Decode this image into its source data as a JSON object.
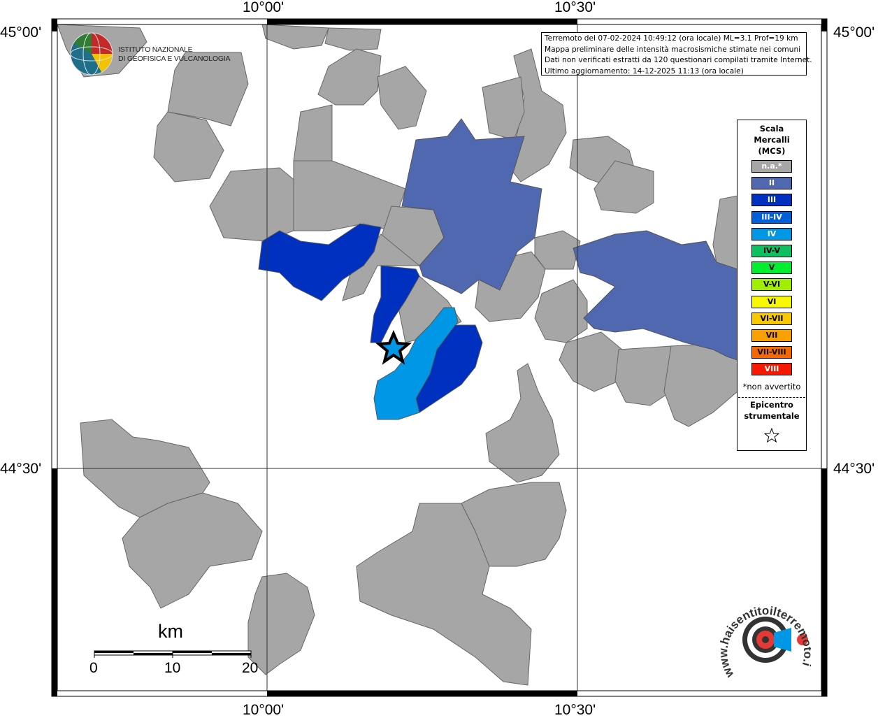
{
  "map": {
    "coordinates": {
      "lon_top_left": "10°00'",
      "lon_top_right": "10°30'",
      "lon_bottom_left": "10°00'",
      "lon_bottom_right": "10°30'",
      "lat_left_top": "45°00'",
      "lat_left_bottom": "44°30'",
      "lat_right_top": "45°00'",
      "lat_right_bottom": "44°30'"
    },
    "colors": {
      "na": "#a6a6a6",
      "II": "#4f68b0",
      "III": "#0030c0",
      "IV": "#0098e6",
      "outline": "#555555"
    },
    "epicenter_icon": "star-icon"
  },
  "info": {
    "line1": "Terremoto del 07-02-2024 10:49:12 (ora locale) ML=3.1 Prof=19 km",
    "line2": "Mappa preliminare delle intensità macrosismiche stimate nei comuni",
    "line3": "Dati non verificati estratti da 120 questionari compilati tramite Internet.",
    "line4": "Ultimo aggiornamento: 14-12-2025 11:13 (ora locale)"
  },
  "legend": {
    "title_line1": "Scala",
    "title_line2": "Mercalli",
    "title_line3": "(MCS)",
    "items": [
      {
        "label": "n.a.*",
        "color": "#a6a6a6",
        "text_color": "#ffffff"
      },
      {
        "label": "II",
        "color": "#4f68b0",
        "text_color": "#ffffff"
      },
      {
        "label": "III",
        "color": "#0030c0",
        "text_color": "#ffffff"
      },
      {
        "label": "III-IV",
        "color": "#0060d8",
        "text_color": "#ffffff"
      },
      {
        "label": "IV",
        "color": "#0098e6",
        "text_color": "#ffffff"
      },
      {
        "label": "IV-V",
        "color": "#10c060",
        "text_color": "#000000"
      },
      {
        "label": "V",
        "color": "#00ee30",
        "text_color": "#000000"
      },
      {
        "label": "V-VI",
        "color": "#a0ee00",
        "text_color": "#000000"
      },
      {
        "label": "VI",
        "color": "#f8f800",
        "text_color": "#000000"
      },
      {
        "label": "VI-VII",
        "color": "#f8c800",
        "text_color": "#000000"
      },
      {
        "label": "VII",
        "color": "#f8a000",
        "text_color": "#000000"
      },
      {
        "label": "VII-VIII",
        "color": "#f86800",
        "text_color": "#000000"
      },
      {
        "label": "VIII",
        "color": "#f81800",
        "text_color": "#ffffff"
      }
    ],
    "note": "*non avvertito",
    "epicenter_line1": "Epicentro",
    "epicenter_line2": "strumentale",
    "epicenter_icon": "star-outline-icon"
  },
  "scale_bar": {
    "unit": "km",
    "ticks": [
      "0",
      "10",
      "20"
    ]
  },
  "logos": {
    "ingv_line1": "ISTITUTO NAZIONALE",
    "ingv_line2": "DI GEOFISICA E VULCANOLOGIA",
    "hsit_text": "www.haisentitoilterremoto.it"
  }
}
